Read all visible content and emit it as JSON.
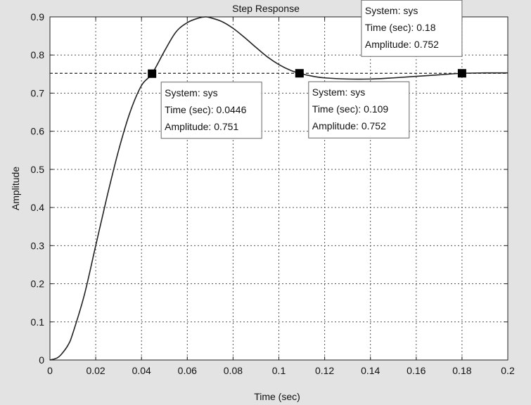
{
  "chart_data": {
    "type": "line",
    "title": "Step Response",
    "xlabel": "Time (sec)",
    "ylabel": "Amplitude",
    "xlim": [
      0,
      0.2
    ],
    "ylim": [
      0,
      0.9
    ],
    "grid": true,
    "x_ticks": [
      0,
      0.02,
      0.04,
      0.06,
      0.08,
      0.1,
      0.12,
      0.14,
      0.16,
      0.18,
      0.2
    ],
    "x_tick_labels": [
      "0",
      "0.02",
      "0.04",
      "0.06",
      "0.08",
      "0.1",
      "0.12",
      "0.14",
      "0.16",
      "0.18",
      "0.2"
    ],
    "y_ticks": [
      0,
      0.1,
      0.2,
      0.3,
      0.4,
      0.5,
      0.6,
      0.7,
      0.8,
      0.9
    ],
    "y_tick_labels": [
      "0",
      "0.1",
      "0.2",
      "0.3",
      "0.4",
      "0.5",
      "0.6",
      "0.7",
      "0.8",
      "0.9"
    ],
    "reference_level": 0.752,
    "series": [
      {
        "x": [
          0,
          0.003,
          0.005,
          0.008,
          0.01,
          0.015,
          0.02,
          0.025,
          0.03,
          0.035,
          0.04,
          0.0446,
          0.05,
          0.055,
          0.06,
          0.065,
          0.068,
          0.07,
          0.075,
          0.08,
          0.085,
          0.09,
          0.095,
          0.1,
          0.105,
          0.109,
          0.115,
          0.12,
          0.13,
          0.14,
          0.15,
          0.16,
          0.17,
          0.18,
          0.19,
          0.2
        ],
        "y": [
          0,
          0.005,
          0.015,
          0.04,
          0.07,
          0.17,
          0.3,
          0.43,
          0.55,
          0.65,
          0.72,
          0.751,
          0.81,
          0.86,
          0.885,
          0.897,
          0.9,
          0.898,
          0.888,
          0.87,
          0.846,
          0.82,
          0.795,
          0.775,
          0.76,
          0.752,
          0.744,
          0.74,
          0.737,
          0.737,
          0.74,
          0.744,
          0.748,
          0.752,
          0.753,
          0.753
        ]
      }
    ],
    "datatips": [
      {
        "system": "System: sys",
        "time": "Time (sec): 0.0446",
        "amplitude": "Amplitude: 0.751",
        "x": 0.0446,
        "y": 0.751
      },
      {
        "system": "System: sys",
        "time": "Time (sec): 0.109",
        "amplitude": "Amplitude: 0.752",
        "x": 0.109,
        "y": 0.752
      },
      {
        "system": "System: sys",
        "time": "Time (sec): 0.18",
        "amplitude": "Amplitude: 0.752",
        "x": 0.18,
        "y": 0.752
      }
    ]
  }
}
